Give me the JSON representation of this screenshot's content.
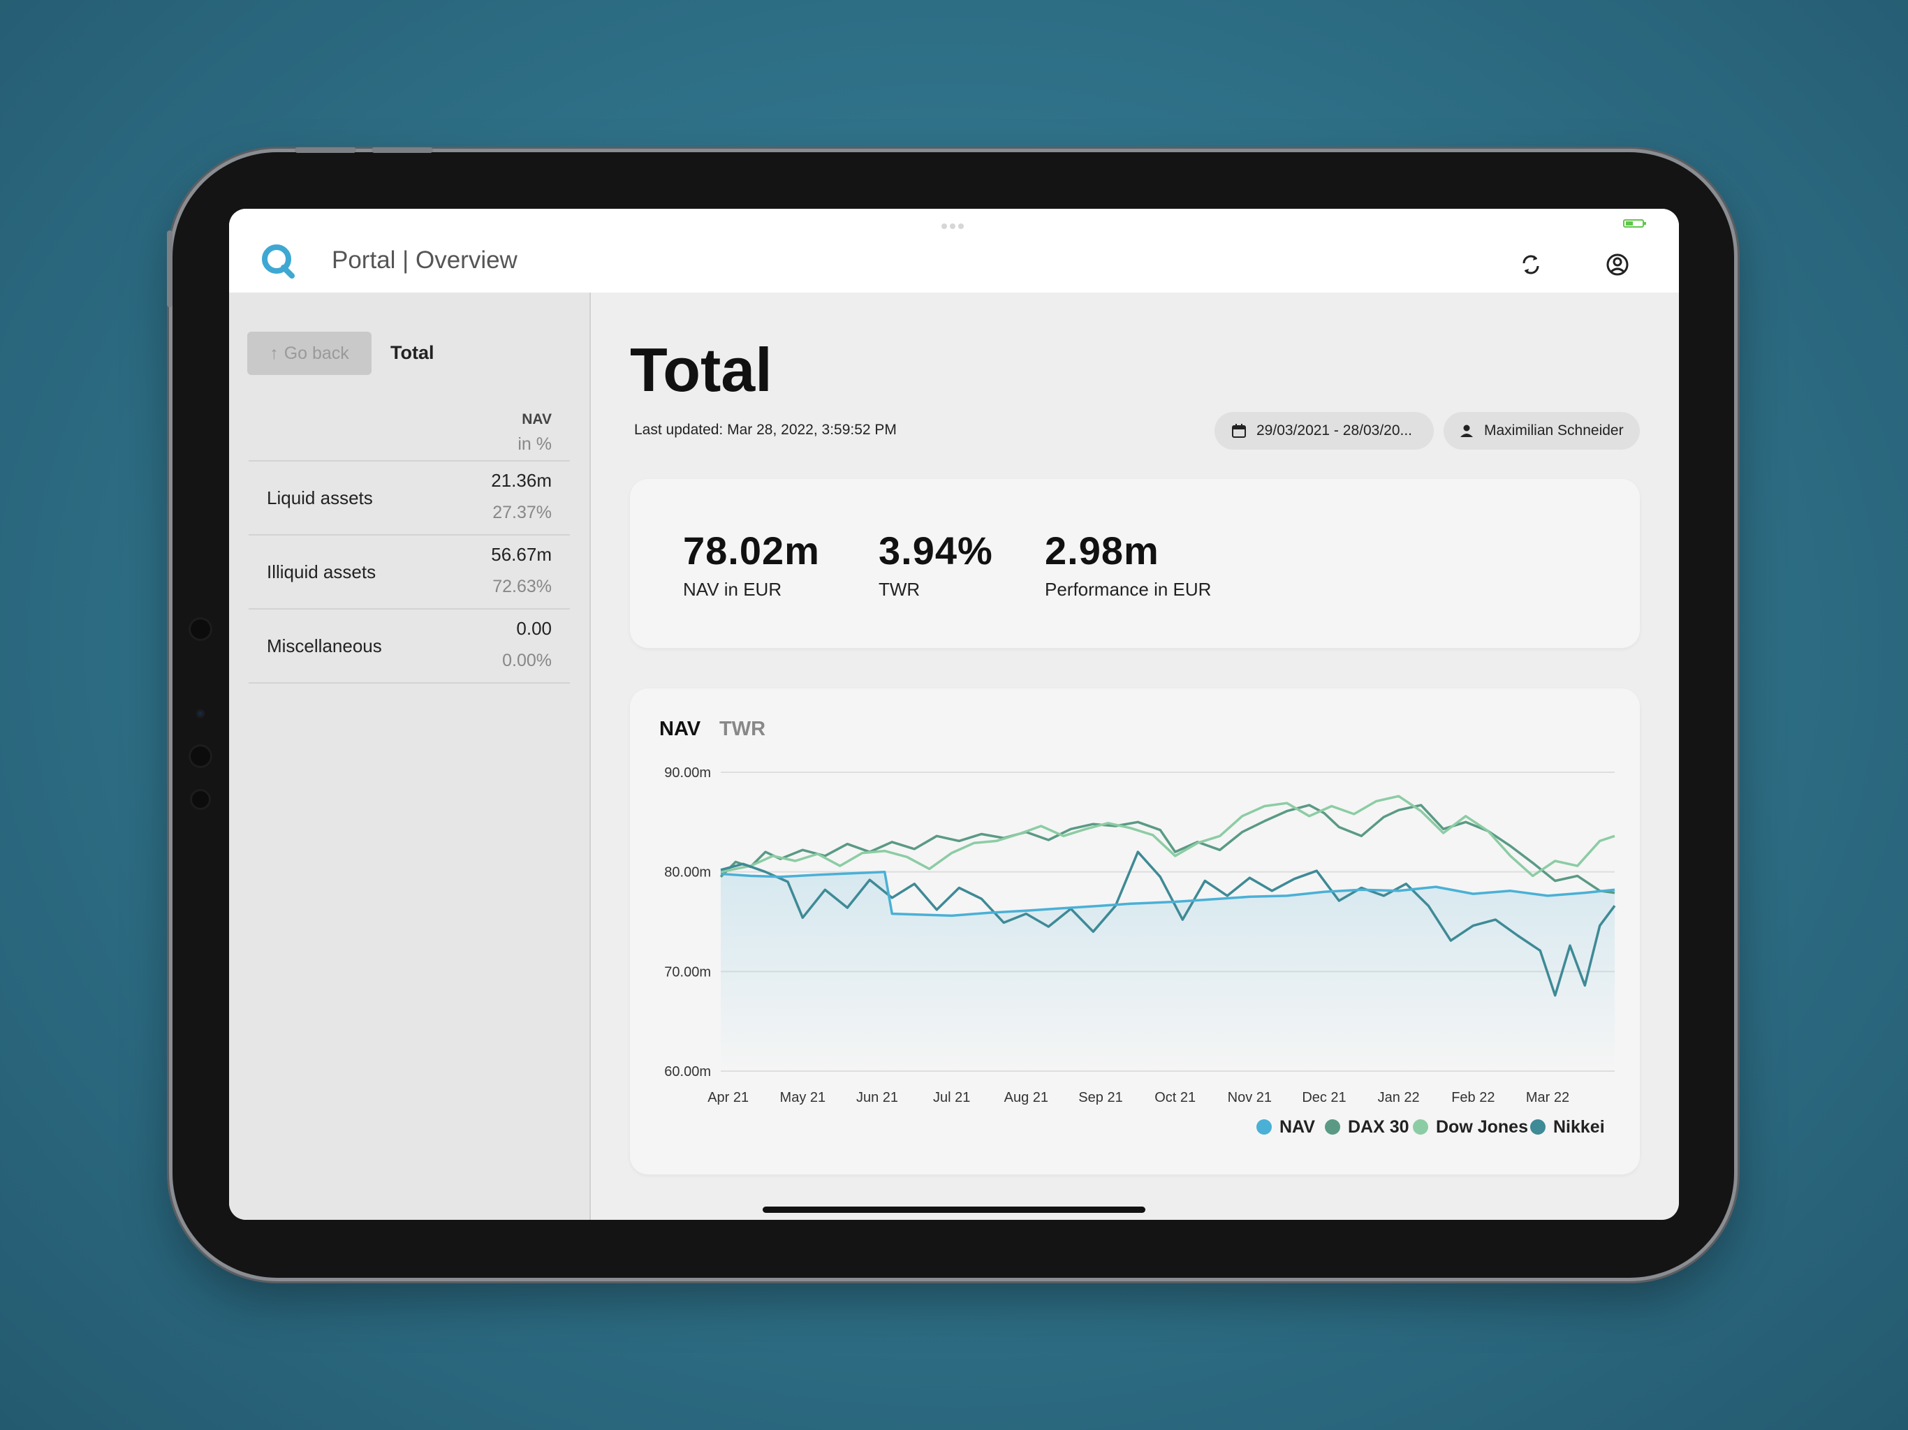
{
  "app": {
    "title": "Portal | Overview"
  },
  "sidebar": {
    "go_back_label": "Go back",
    "title": "Total",
    "header_nav": "NAV",
    "header_pct": "in %",
    "rows": [
      {
        "label": "Liquid assets",
        "value": "21.36m",
        "percent": "27.37%"
      },
      {
        "label": "Illiquid assets",
        "value": "56.67m",
        "percent": "72.63%"
      },
      {
        "label": "Miscellaneous",
        "value": "0.00",
        "percent": "0.00%"
      }
    ]
  },
  "main": {
    "title": "Total",
    "last_updated": "Last updated: Mar 28, 2022, 3:59:52 PM",
    "date_range": "29/03/2021 - 28/03/20...",
    "user": "Maximilian Schneider",
    "kpis": [
      {
        "value": "78.02m",
        "label": "NAV in EUR"
      },
      {
        "value": "3.94%",
        "label": "TWR"
      },
      {
        "value": "2.98m",
        "label": "Performance in EUR"
      }
    ],
    "tabs": [
      {
        "label": "NAV",
        "active": true
      },
      {
        "label": "TWR",
        "active": false
      }
    ]
  },
  "colors": {
    "nav": "#4ab0d6",
    "dax": "#5a9a84",
    "dow": "#8ccca4",
    "nikkei": "#3e8a96",
    "accent": "#3ea8d2"
  },
  "chart_data": {
    "type": "line",
    "ylim": [
      60,
      90
    ],
    "y_ticks": [
      {
        "value": 90,
        "label": "90.00m"
      },
      {
        "value": 80,
        "label": "80.00m"
      },
      {
        "value": 70,
        "label": "70.00m"
      },
      {
        "value": 60,
        "label": "60.00m"
      }
    ],
    "x_labels": [
      "Apr 21",
      "May 21",
      "Jun 21",
      "Jul 21",
      "Aug 21",
      "Sep 21",
      "Oct 21",
      "Nov 21",
      "Dec 21",
      "Jan 22",
      "Feb 22",
      "Mar 22"
    ],
    "x_range": [
      -0.1,
      11.9
    ],
    "series": [
      {
        "name": "NAV",
        "color": "#4ab0d6",
        "area": true,
        "points": [
          [
            -0.1,
            79.8
          ],
          [
            0.3,
            79.6
          ],
          [
            0.7,
            79.5
          ],
          [
            1.2,
            79.7
          ],
          [
            1.8,
            79.9
          ],
          [
            2.1,
            80.0
          ],
          [
            2.2,
            75.8
          ],
          [
            2.6,
            75.7
          ],
          [
            3.0,
            75.6
          ],
          [
            3.5,
            75.9
          ],
          [
            4.0,
            76.1
          ],
          [
            4.6,
            76.4
          ],
          [
            5.0,
            76.6
          ],
          [
            5.4,
            76.8
          ],
          [
            6.0,
            77.0
          ],
          [
            6.4,
            77.2
          ],
          [
            7.0,
            77.5
          ],
          [
            7.5,
            77.6
          ],
          [
            8.0,
            78.0
          ],
          [
            8.5,
            78.2
          ],
          [
            9.0,
            78.1
          ],
          [
            9.5,
            78.5
          ],
          [
            10.0,
            77.8
          ],
          [
            10.5,
            78.1
          ],
          [
            11.0,
            77.6
          ],
          [
            11.5,
            77.9
          ],
          [
            11.9,
            78.2
          ]
        ]
      },
      {
        "name": "DAX 30",
        "color": "#5a9a84",
        "points": [
          [
            -0.1,
            79.5
          ],
          [
            0.1,
            81.0
          ],
          [
            0.3,
            80.5
          ],
          [
            0.5,
            82.0
          ],
          [
            0.7,
            81.3
          ],
          [
            1.0,
            82.2
          ],
          [
            1.3,
            81.6
          ],
          [
            1.6,
            82.8
          ],
          [
            1.9,
            82.0
          ],
          [
            2.2,
            83.0
          ],
          [
            2.5,
            82.3
          ],
          [
            2.8,
            83.6
          ],
          [
            3.1,
            83.1
          ],
          [
            3.4,
            83.8
          ],
          [
            3.7,
            83.4
          ],
          [
            4.0,
            84.0
          ],
          [
            4.3,
            83.2
          ],
          [
            4.6,
            84.3
          ],
          [
            4.9,
            84.8
          ],
          [
            5.2,
            84.6
          ],
          [
            5.5,
            85.0
          ],
          [
            5.8,
            84.2
          ],
          [
            6.0,
            82.0
          ],
          [
            6.3,
            83.0
          ],
          [
            6.6,
            82.2
          ],
          [
            6.9,
            84.0
          ],
          [
            7.2,
            85.1
          ],
          [
            7.5,
            86.1
          ],
          [
            7.8,
            86.7
          ],
          [
            8.0,
            85.9
          ],
          [
            8.2,
            84.5
          ],
          [
            8.5,
            83.6
          ],
          [
            8.8,
            85.5
          ],
          [
            9.0,
            86.2
          ],
          [
            9.3,
            86.7
          ],
          [
            9.6,
            84.3
          ],
          [
            9.9,
            85.0
          ],
          [
            10.2,
            84.1
          ],
          [
            10.5,
            82.6
          ],
          [
            10.8,
            80.9
          ],
          [
            11.1,
            79.1
          ],
          [
            11.4,
            79.6
          ],
          [
            11.7,
            78.1
          ],
          [
            11.9,
            77.9
          ]
        ]
      },
      {
        "name": "Dow Jones",
        "color": "#8ccca4",
        "points": [
          [
            -0.1,
            80.0
          ],
          [
            0.3,
            80.6
          ],
          [
            0.6,
            81.6
          ],
          [
            0.9,
            81.1
          ],
          [
            1.2,
            81.8
          ],
          [
            1.5,
            80.6
          ],
          [
            1.8,
            81.9
          ],
          [
            2.1,
            82.1
          ],
          [
            2.4,
            81.5
          ],
          [
            2.7,
            80.3
          ],
          [
            3.0,
            81.9
          ],
          [
            3.3,
            82.9
          ],
          [
            3.6,
            83.1
          ],
          [
            3.9,
            83.8
          ],
          [
            4.2,
            84.6
          ],
          [
            4.5,
            83.6
          ],
          [
            4.8,
            84.3
          ],
          [
            5.1,
            84.9
          ],
          [
            5.4,
            84.4
          ],
          [
            5.7,
            83.7
          ],
          [
            6.0,
            81.6
          ],
          [
            6.3,
            82.9
          ],
          [
            6.6,
            83.6
          ],
          [
            6.9,
            85.6
          ],
          [
            7.2,
            86.6
          ],
          [
            7.5,
            86.9
          ],
          [
            7.8,
            85.6
          ],
          [
            8.1,
            86.6
          ],
          [
            8.4,
            85.8
          ],
          [
            8.7,
            87.1
          ],
          [
            9.0,
            87.6
          ],
          [
            9.3,
            86.1
          ],
          [
            9.6,
            83.9
          ],
          [
            9.9,
            85.6
          ],
          [
            10.2,
            84.1
          ],
          [
            10.5,
            81.6
          ],
          [
            10.8,
            79.6
          ],
          [
            11.1,
            81.1
          ],
          [
            11.4,
            80.6
          ],
          [
            11.7,
            83.1
          ],
          [
            11.9,
            83.6
          ]
        ]
      },
      {
        "name": "Nikkei",
        "color": "#3e8a96",
        "points": [
          [
            -0.1,
            80.2
          ],
          [
            0.2,
            80.8
          ],
          [
            0.5,
            80.0
          ],
          [
            0.8,
            79.0
          ],
          [
            1.0,
            75.4
          ],
          [
            1.3,
            78.2
          ],
          [
            1.6,
            76.4
          ],
          [
            1.9,
            79.2
          ],
          [
            2.2,
            77.4
          ],
          [
            2.5,
            78.8
          ],
          [
            2.8,
            76.2
          ],
          [
            3.1,
            78.4
          ],
          [
            3.4,
            77.3
          ],
          [
            3.7,
            74.9
          ],
          [
            4.0,
            75.8
          ],
          [
            4.3,
            74.5
          ],
          [
            4.6,
            76.3
          ],
          [
            4.9,
            74.0
          ],
          [
            5.2,
            76.6
          ],
          [
            5.5,
            82.0
          ],
          [
            5.8,
            79.5
          ],
          [
            6.1,
            75.2
          ],
          [
            6.4,
            79.1
          ],
          [
            6.7,
            77.6
          ],
          [
            7.0,
            79.4
          ],
          [
            7.3,
            78.1
          ],
          [
            7.6,
            79.3
          ],
          [
            7.9,
            80.1
          ],
          [
            8.2,
            77.1
          ],
          [
            8.5,
            78.4
          ],
          [
            8.8,
            77.6
          ],
          [
            9.1,
            78.8
          ],
          [
            9.4,
            76.6
          ],
          [
            9.7,
            73.1
          ],
          [
            10.0,
            74.6
          ],
          [
            10.3,
            75.2
          ],
          [
            10.6,
            73.6
          ],
          [
            10.9,
            72.1
          ],
          [
            11.1,
            67.6
          ],
          [
            11.3,
            72.6
          ],
          [
            11.5,
            68.6
          ],
          [
            11.7,
            74.6
          ],
          [
            11.9,
            76.6
          ]
        ]
      }
    ],
    "legend": [
      "NAV",
      "DAX 30",
      "Dow Jones",
      "Nikkei"
    ],
    "legend_position": "bottom-right"
  }
}
